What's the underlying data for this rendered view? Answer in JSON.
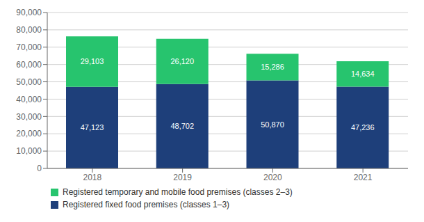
{
  "chart_data": {
    "type": "bar",
    "stacked": true,
    "categories": [
      "2018",
      "2019",
      "2020",
      "2021"
    ],
    "series": [
      {
        "name": "Registered fixed food premises (classes 1–3)",
        "color": "#1e3f7a",
        "values": [
          47123,
          48702,
          50870,
          47236
        ],
        "value_labels": [
          "47,123",
          "48,702",
          "50,870",
          "47,236"
        ]
      },
      {
        "name": "Registered temporary and mobile food premises (classes 2–3)",
        "color": "#27c46e",
        "values": [
          29103,
          26120,
          15286,
          14634
        ],
        "value_labels": [
          "29,103",
          "26,120",
          "15,286",
          "14,634"
        ]
      }
    ],
    "ylim": [
      0,
      90000
    ],
    "yticks": [
      0,
      {
        "value": 10000,
        "label": "10,000"
      },
      {
        "value": 20000,
        "label": "20,000"
      },
      {
        "value": 30000,
        "label": "30,000"
      },
      {
        "value": 40000,
        "label": "40,000"
      },
      {
        "value": 50000,
        "label": "50,000"
      },
      {
        "value": 60000,
        "label": "60,000"
      },
      {
        "value": 70000,
        "label": "70,000"
      },
      {
        "value": 80000,
        "label": "80,000"
      },
      {
        "value": 90000,
        "label": "90,000"
      }
    ],
    "grid": true,
    "data_labels": true,
    "legend": "lower left"
  }
}
